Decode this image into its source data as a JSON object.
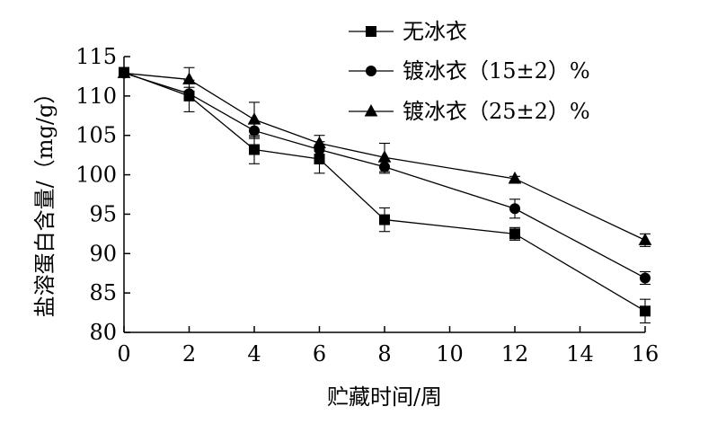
{
  "chart_data": {
    "type": "line",
    "xlabel": "贮藏时间/周",
    "ylabel": "盐溶蛋白含量/（mg/g）",
    "x": [
      0,
      2,
      4,
      6,
      8,
      12,
      16
    ],
    "xlim": [
      0,
      16
    ],
    "ylim": [
      80,
      115
    ],
    "x_ticks": [
      0,
      2,
      4,
      6,
      8,
      10,
      12,
      14,
      16
    ],
    "y_ticks": [
      80,
      85,
      90,
      95,
      100,
      105,
      110,
      115
    ],
    "grid": false,
    "legend_position": "top-right",
    "series": [
      {
        "name": "无冰衣",
        "marker": "square",
        "values": [
          113.0,
          110.0,
          103.2,
          102.0,
          94.3,
          92.5,
          82.7
        ],
        "errors": [
          0.5,
          2.0,
          1.8,
          1.8,
          1.5,
          0.8,
          1.5
        ]
      },
      {
        "name": "镀冰衣（15±2）%",
        "marker": "circle",
        "values": [
          112.9,
          110.3,
          105.6,
          103.2,
          101.0,
          95.7,
          86.9
        ],
        "errors": [
          0.4,
          0.8,
          1.0,
          1.0,
          0.8,
          1.2,
          0.8
        ]
      },
      {
        "name": "镀冰衣（25±2）%",
        "marker": "triangle",
        "values": [
          112.9,
          112.1,
          107.0,
          104.0,
          102.2,
          99.5,
          91.7
        ],
        "errors": [
          0.4,
          1.5,
          2.2,
          1.0,
          1.8,
          0.3,
          0.8
        ]
      }
    ]
  }
}
